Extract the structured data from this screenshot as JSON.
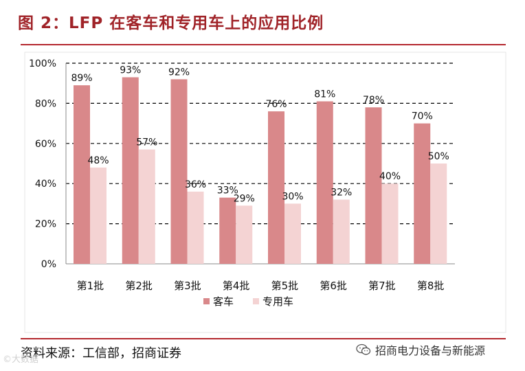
{
  "title": "图 2：LFP 在客车和专用车上的应用比例",
  "source": "资料来源：工信部，招商证券",
  "wechat_label": "招商电力设备与新能源",
  "watermark": "©大数据",
  "colors": {
    "bus": "#d9888a",
    "special": "#f4d3d3",
    "accent": "#b3262c"
  },
  "chart_data": {
    "type": "bar",
    "title": "",
    "xlabel": "",
    "ylabel": "",
    "categories": [
      "第1批",
      "第2批",
      "第3批",
      "第4批",
      "第5批",
      "第6批",
      "第7批",
      "第8批"
    ],
    "series": [
      {
        "name": "客车",
        "values": [
          89,
          93,
          92,
          33,
          76,
          81,
          78,
          70
        ],
        "labels": [
          "89%",
          "93%",
          "92%",
          "33%",
          "76%",
          "81%",
          "78%",
          "70%"
        ]
      },
      {
        "name": "专用车",
        "values": [
          48,
          57,
          36,
          29,
          30,
          32,
          40,
          50
        ],
        "labels": [
          "48%",
          "57%",
          "36%",
          "29%",
          "30%",
          "32%",
          "40%",
          "50%"
        ]
      }
    ],
    "ylim": [
      0,
      100
    ],
    "yticks": [
      0,
      20,
      40,
      60,
      80,
      100
    ],
    "ytick_labels": [
      "0%",
      "20%",
      "40%",
      "60%",
      "80%",
      "100%"
    ],
    "grid": "dashed horizontal",
    "legend": "bottom-center"
  }
}
